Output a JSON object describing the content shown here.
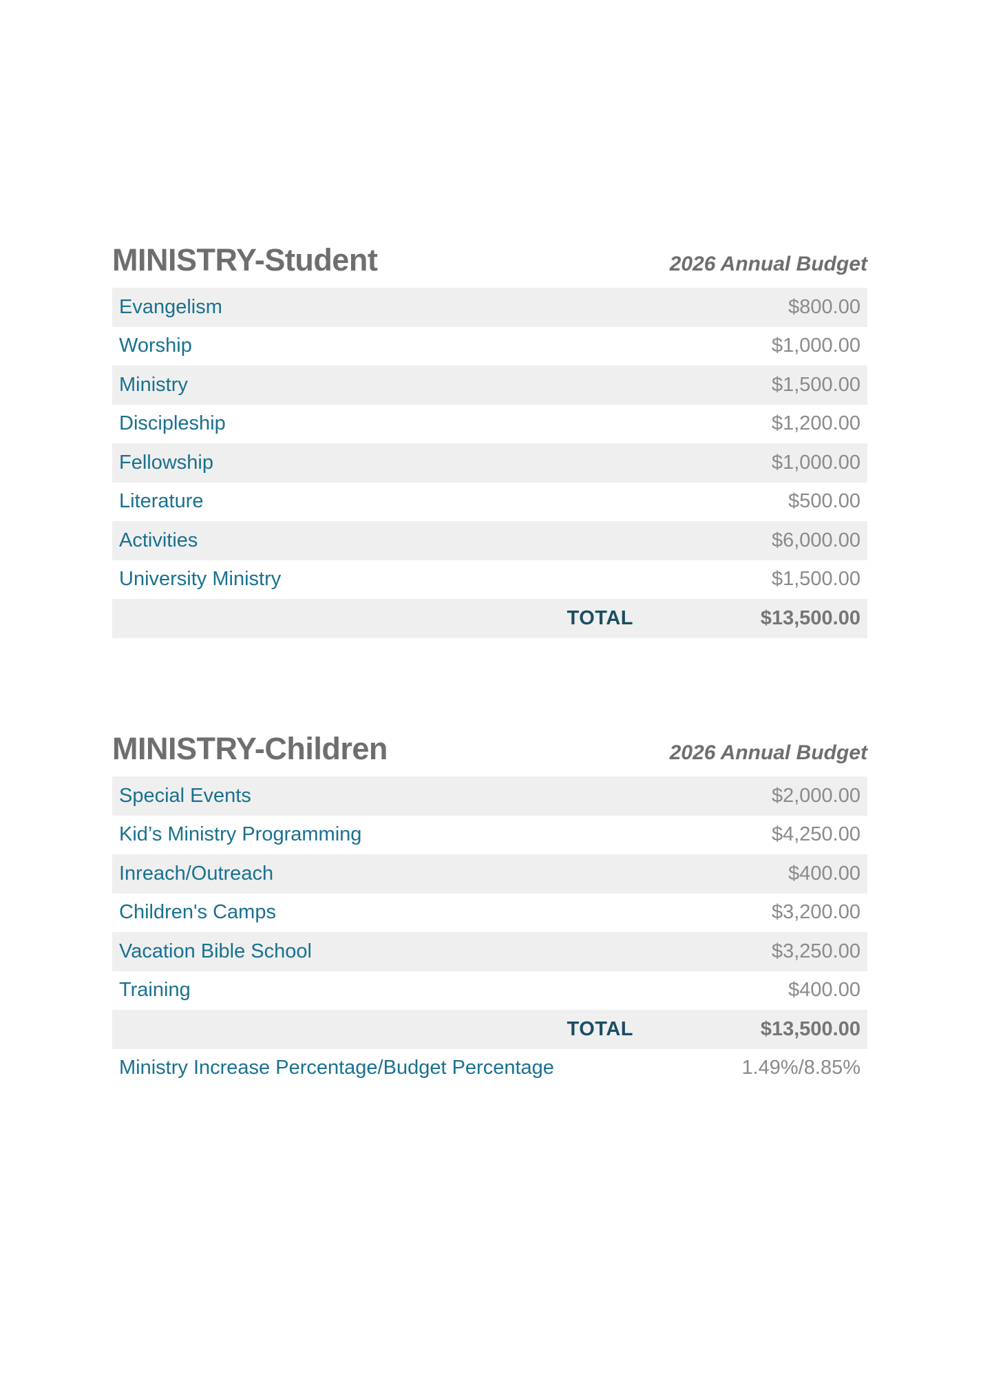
{
  "colors": {
    "item_label_teal": "#19718f",
    "total_label_teal": "#1a4e63",
    "title_gray": "#6e6e6e",
    "value_gray": "#8a8a8a",
    "alt_row_background": "#efefef",
    "page_background": "#ffffff"
  },
  "tables": [
    {
      "title": "MINISTRY-Student",
      "budget_label": "2026 Annual Budget",
      "rows": [
        {
          "label": "Evangelism",
          "value": "$800.00"
        },
        {
          "label": "Worship",
          "value": "$1,000.00"
        },
        {
          "label": "Ministry",
          "value": "$1,500.00"
        },
        {
          "label": "Discipleship",
          "value": "$1,200.00"
        },
        {
          "label": "Fellowship",
          "value": "$1,000.00"
        },
        {
          "label": "Literature",
          "value": "$500.00"
        },
        {
          "label": "Activities",
          "value": "$6,000.00"
        },
        {
          "label": "University Ministry",
          "value": "$1,500.00"
        }
      ],
      "total": {
        "label": "TOTAL",
        "value": "$13,500.00"
      }
    },
    {
      "title": "MINISTRY-Children",
      "budget_label": "2026 Annual Budget",
      "rows": [
        {
          "label": "Special Events",
          "value": "$2,000.00"
        },
        {
          "label": "Kid’s Ministry Programming",
          "value": "$4,250.00"
        },
        {
          "label": "Inreach/Outreach",
          "value": "$400.00"
        },
        {
          "label": "Children's Camps",
          "value": "$3,200.00"
        },
        {
          "label": "Vacation Bible School",
          "value": "$3,250.00"
        },
        {
          "label": "Training",
          "value": "$400.00"
        }
      ],
      "total": {
        "label": "TOTAL",
        "value": "$13,500.00"
      },
      "footer": {
        "label": "Ministry Increase Percentage/Budget Percentage",
        "value": "1.49%/8.85%"
      }
    }
  ]
}
